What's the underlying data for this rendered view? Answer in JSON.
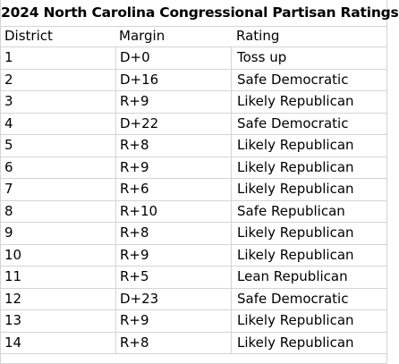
{
  "title": "2024 North Carolina Congressional Partisan Ratings",
  "columns": [
    "District",
    "Margin",
    "Rating"
  ],
  "rows": [
    {
      "district": "1",
      "margin": "D+0",
      "rating": "Toss up"
    },
    {
      "district": "2",
      "margin": "D+16",
      "rating": "Safe Democratic"
    },
    {
      "district": "3",
      "margin": "R+9",
      "rating": "Likely Republican"
    },
    {
      "district": "4",
      "margin": "D+22",
      "rating": "Safe Democratic"
    },
    {
      "district": "5",
      "margin": "R+8",
      "rating": "Likely Republican"
    },
    {
      "district": "6",
      "margin": "R+9",
      "rating": "Likely Republican"
    },
    {
      "district": "7",
      "margin": "R+6",
      "rating": "Likely Republican"
    },
    {
      "district": "8",
      "margin": "R+10",
      "rating": "Safe Republican"
    },
    {
      "district": "9",
      "margin": "R+8",
      "rating": "Likely Republican"
    },
    {
      "district": "10",
      "margin": "R+9",
      "rating": "Likely Republican"
    },
    {
      "district": "11",
      "margin": "R+5",
      "rating": "Lean Republican"
    },
    {
      "district": "12",
      "margin": "D+23",
      "rating": "Safe Democratic"
    },
    {
      "district": "13",
      "margin": "R+9",
      "rating": "Likely Republican"
    },
    {
      "district": "14",
      "margin": "R+8",
      "rating": "Likely Republican"
    }
  ]
}
